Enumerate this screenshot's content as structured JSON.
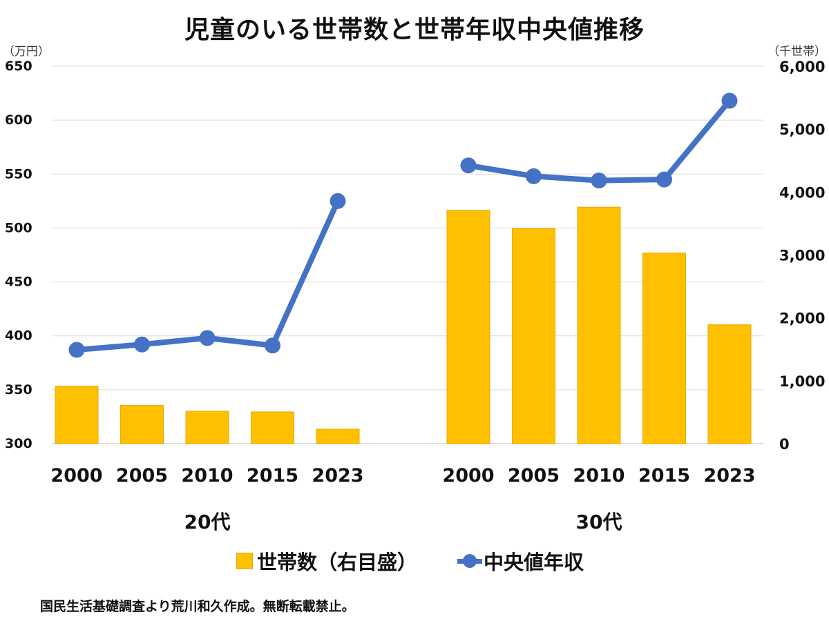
{
  "title": "児童のいる世帯数と世帯年収中央値推移",
  "footer": "国民生活基礎調査より荒川和久作成。無断転載禁止。",
  "chart_data": {
    "type": "bar+line",
    "title": "児童のいる世帯数と世帯年収中央値推移",
    "groups": [
      "20代",
      "30代"
    ],
    "categories": [
      "2000",
      "2005",
      "2010",
      "2015",
      "2023"
    ],
    "y_left": {
      "unit": "（万円）",
      "ylim": [
        300,
        650
      ],
      "ticks": [
        300,
        350,
        400,
        450,
        500,
        550,
        600,
        650
      ]
    },
    "y_right": {
      "unit": "（千世帯）",
      "ylim": [
        0,
        6000
      ],
      "ticks": [
        0,
        1000,
        2000,
        3000,
        4000,
        5000,
        6000
      ],
      "tick_labels": [
        "0",
        "1,000",
        "2,000",
        "3,000",
        "4,000",
        "5,000",
        "6,000"
      ]
    },
    "series": [
      {
        "name": "世帯数（右目盛）",
        "type": "bar",
        "axis": "right",
        "color": "#FFC000",
        "values": {
          "20代": [
            914,
            610,
            515,
            505,
            230
          ],
          "30代": [
            3710,
            3420,
            3760,
            3030,
            1890
          ]
        }
      },
      {
        "name": "中央値年収",
        "type": "line",
        "axis": "left",
        "color": "#4472C4",
        "values": {
          "20代": [
            387,
            392,
            398,
            391,
            525
          ],
          "30代": [
            558,
            548,
            544,
            545,
            618
          ]
        }
      }
    ],
    "grid": true,
    "legend": "bottom"
  }
}
